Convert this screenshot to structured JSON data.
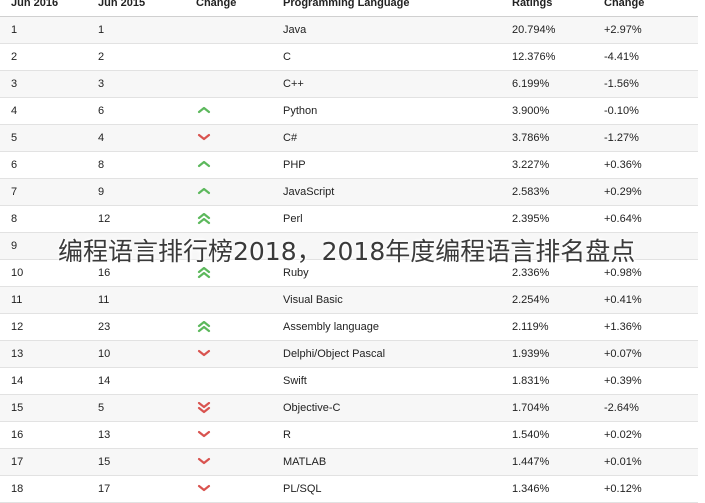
{
  "headers": [
    "Jun 2016",
    "Jun 2015",
    "Change",
    "Programming Language",
    "Ratings",
    "Change"
  ],
  "rows": [
    {
      "rank2016": "1",
      "rank2015": "1",
      "trend": "none",
      "language": "Java",
      "rating": "20.794%",
      "change": "+2.97%"
    },
    {
      "rank2016": "2",
      "rank2015": "2",
      "trend": "none",
      "language": "C",
      "rating": "12.376%",
      "change": "-4.41%"
    },
    {
      "rank2016": "3",
      "rank2015": "3",
      "trend": "none",
      "language": "C++",
      "rating": "6.199%",
      "change": "-1.56%"
    },
    {
      "rank2016": "4",
      "rank2015": "6",
      "trend": "up",
      "language": "Python",
      "rating": "3.900%",
      "change": "-0.10%"
    },
    {
      "rank2016": "5",
      "rank2015": "4",
      "trend": "down",
      "language": "C#",
      "rating": "3.786%",
      "change": "-1.27%"
    },
    {
      "rank2016": "6",
      "rank2015": "8",
      "trend": "up",
      "language": "PHP",
      "rating": "3.227%",
      "change": "+0.36%"
    },
    {
      "rank2016": "7",
      "rank2015": "9",
      "trend": "up",
      "language": "JavaScript",
      "rating": "2.583%",
      "change": "+0.29%"
    },
    {
      "rank2016": "8",
      "rank2015": "12",
      "trend": "double-up",
      "language": "Perl",
      "rating": "2.395%",
      "change": "+0.64%"
    },
    {
      "rank2016": "9",
      "rank2015": "",
      "trend": "none",
      "language": "",
      "rating": "",
      "change": ""
    },
    {
      "rank2016": "10",
      "rank2015": "16",
      "trend": "double-up",
      "language": "Ruby",
      "rating": "2.336%",
      "change": "+0.98%"
    },
    {
      "rank2016": "11",
      "rank2015": "11",
      "trend": "none",
      "language": "Visual Basic",
      "rating": "2.254%",
      "change": "+0.41%"
    },
    {
      "rank2016": "12",
      "rank2015": "23",
      "trend": "double-up",
      "language": "Assembly language",
      "rating": "2.119%",
      "change": "+1.36%"
    },
    {
      "rank2016": "13",
      "rank2015": "10",
      "trend": "down",
      "language": "Delphi/Object Pascal",
      "rating": "1.939%",
      "change": "+0.07%"
    },
    {
      "rank2016": "14",
      "rank2015": "14",
      "trend": "none",
      "language": "Swift",
      "rating": "1.831%",
      "change": "+0.39%"
    },
    {
      "rank2016": "15",
      "rank2015": "5",
      "trend": "double-down",
      "language": "Objective-C",
      "rating": "1.704%",
      "change": "-2.64%"
    },
    {
      "rank2016": "16",
      "rank2015": "13",
      "trend": "down",
      "language": "R",
      "rating": "1.540%",
      "change": "+0.02%"
    },
    {
      "rank2016": "17",
      "rank2015": "15",
      "trend": "down",
      "language": "MATLAB",
      "rating": "1.447%",
      "change": "+0.01%"
    },
    {
      "rank2016": "18",
      "rank2015": "17",
      "trend": "down",
      "language": "PL/SQL",
      "rating": "1.346%",
      "change": "+0.12%"
    }
  ],
  "overlay_caption": "编程语言排行榜2018，2018年度编程语言排名盘点",
  "colors": {
    "up": "#5cb85c",
    "down": "#d9534f"
  }
}
